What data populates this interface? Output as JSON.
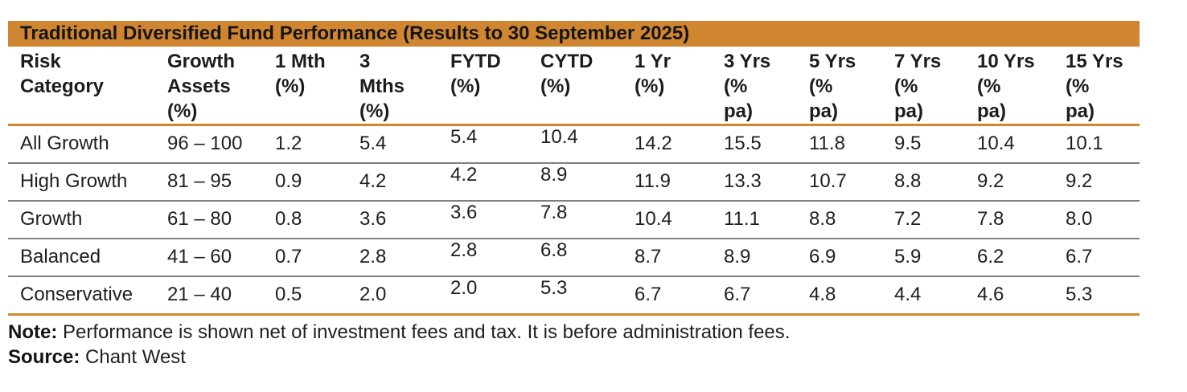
{
  "colors": {
    "accent_orange": "#D08630",
    "divider_gray": "#7F7F7F",
    "text_dark": "#1F1F1F"
  },
  "table": {
    "title": "Traditional Diversified Fund Performance (Results to 30 September 2025)",
    "columns": [
      "Risk\nCategory",
      "Growth\nAssets\n(%)",
      "1 Mth\n(%)",
      "3\nMths\n(%)",
      "FYTD\n(%)",
      "CYTD\n(%)",
      "1 Yr\n(%)",
      "3 Yrs\n(%\npa)",
      "5 Yrs\n(%\npa)",
      "7 Yrs\n(%\npa)",
      "10 Yrs\n(%\npa)",
      "15 Yrs\n(%\npa)"
    ],
    "rows": [
      {
        "cells": [
          "All Growth",
          "96 – 100",
          "1.2",
          "5.4",
          "5.4",
          "10.4",
          "14.2",
          "15.5",
          "11.8",
          "9.5",
          "10.4",
          "10.1"
        ]
      },
      {
        "cells": [
          "High Growth",
          "81 – 95",
          "0.9",
          "4.2",
          "4.2",
          "8.9",
          "11.9",
          "13.3",
          "10.7",
          "8.8",
          "9.2",
          "9.2"
        ]
      },
      {
        "cells": [
          "Growth",
          "61 – 80",
          "0.8",
          "3.6",
          "3.6",
          "7.8",
          "10.4",
          "11.1",
          "8.8",
          "7.2",
          "7.8",
          "8.0"
        ]
      },
      {
        "cells": [
          "Balanced",
          "41 – 60",
          "0.7",
          "2.8",
          "2.8",
          "6.8",
          "8.7",
          "8.9",
          "6.9",
          "5.9",
          "6.2",
          "6.7"
        ]
      },
      {
        "cells": [
          "Conservative",
          "21 – 40",
          "0.5",
          "2.0",
          "2.0",
          "5.3",
          "6.7",
          "6.7",
          "4.8",
          "4.4",
          "4.6",
          "5.3"
        ]
      }
    ]
  },
  "footnotes": {
    "note_label": "Note:",
    "note_text": " Performance is shown net of investment fees and tax. It is before administration fees.",
    "source_label": "Source:",
    "source_text": " Chant West"
  },
  "chart_data": {
    "type": "table",
    "title": "Traditional Diversified Fund Performance (Results to 30 September 2025)",
    "columns": [
      "Risk Category",
      "Growth Assets (%)",
      "1 Mth (%)",
      "3 Mths (%)",
      "FYTD (%)",
      "CYTD (%)",
      "1 Yr (%)",
      "3 Yrs (% pa)",
      "5 Yrs (% pa)",
      "7 Yrs (% pa)",
      "10 Yrs (% pa)",
      "15 Yrs (% pa)"
    ],
    "rows": [
      [
        "All Growth",
        "96 – 100",
        1.2,
        5.4,
        5.4,
        10.4,
        14.2,
        15.5,
        11.8,
        9.5,
        10.4,
        10.1
      ],
      [
        "High Growth",
        "81 – 95",
        0.9,
        4.2,
        4.2,
        8.9,
        11.9,
        13.3,
        10.7,
        8.8,
        9.2,
        9.2
      ],
      [
        "Growth",
        "61 – 80",
        0.8,
        3.6,
        3.6,
        7.8,
        10.4,
        11.1,
        8.8,
        7.2,
        7.8,
        8.0
      ],
      [
        "Balanced",
        "41 – 60",
        0.7,
        2.8,
        2.8,
        6.8,
        8.7,
        8.9,
        6.9,
        5.9,
        6.2,
        6.7
      ],
      [
        "Conservative",
        "21 – 40",
        0.5,
        2.0,
        2.0,
        5.3,
        6.7,
        6.7,
        4.8,
        4.4,
        4.6,
        5.3
      ]
    ],
    "note": "Performance is shown net of investment fees and tax. It is before administration fees.",
    "source": "Chant West"
  }
}
